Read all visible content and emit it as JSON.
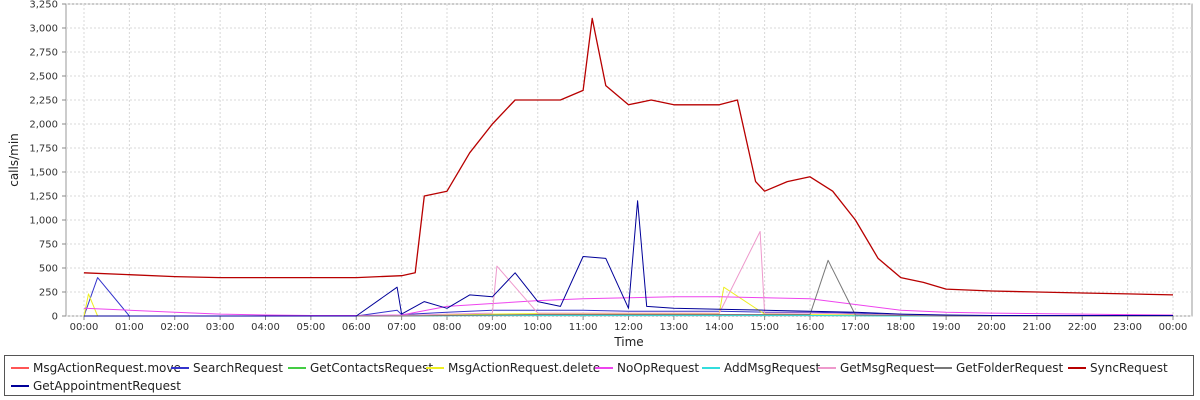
{
  "chart_data": {
    "type": "line",
    "xlabel": "Time",
    "ylabel": "calls/min",
    "ylim": [
      0,
      3250
    ],
    "xlim": [
      0,
      24
    ],
    "y_ticks": [
      0,
      250,
      500,
      750,
      1000,
      1250,
      1500,
      1750,
      2000,
      2250,
      2500,
      2750,
      3000,
      3250
    ],
    "y_tick_labels": [
      "0",
      "250",
      "500",
      "750",
      "1,000",
      "1,250",
      "1,500",
      "1,750",
      "2,000",
      "2,250",
      "2,500",
      "2,750",
      "3,000",
      "3,250"
    ],
    "x_tick_labels": [
      "00:00",
      "01:00",
      "02:00",
      "03:00",
      "04:00",
      "05:00",
      "06:00",
      "07:00",
      "08:00",
      "09:00",
      "10:00",
      "11:00",
      "12:00",
      "13:00",
      "14:00",
      "15:00",
      "16:00",
      "17:00",
      "18:00",
      "19:00",
      "20:00",
      "21:00",
      "22:00",
      "23:00",
      "00:00"
    ],
    "grid": true,
    "legend_position": "bottom",
    "series": [
      {
        "name": "MsgActionRequest.move",
        "color": "#ff5555",
        "x": [
          0,
          1,
          2,
          3,
          4,
          5,
          6,
          7,
          8,
          9,
          10,
          11,
          12,
          13,
          14,
          15,
          16,
          17,
          18,
          19,
          20,
          21,
          22,
          23,
          24
        ],
        "values": [
          0,
          0,
          0,
          0,
          0,
          0,
          0,
          0,
          5,
          10,
          15,
          15,
          15,
          15,
          15,
          10,
          10,
          5,
          3,
          0,
          0,
          0,
          0,
          0,
          0
        ]
      },
      {
        "name": "SearchRequest",
        "color": "#3333cc",
        "x": [
          0,
          0.3,
          1,
          2,
          3,
          4,
          5,
          6,
          6.9,
          7,
          8,
          9,
          10,
          11,
          12,
          13,
          14,
          15,
          16,
          17,
          18,
          19,
          20,
          21,
          22,
          23,
          24
        ],
        "values": [
          0,
          400,
          0,
          0,
          0,
          0,
          0,
          0,
          60,
          15,
          40,
          60,
          60,
          60,
          50,
          50,
          50,
          40,
          40,
          30,
          10,
          5,
          5,
          5,
          5,
          5,
          5
        ]
      },
      {
        "name": "GetContactsRequest",
        "color": "#44cc44",
        "x": [
          0,
          1,
          2,
          3,
          4,
          5,
          6,
          7,
          8,
          9,
          10,
          11,
          12,
          13,
          14,
          15,
          16,
          17,
          18,
          19,
          20,
          21,
          22,
          23,
          24
        ],
        "values": [
          0,
          0,
          0,
          0,
          0,
          0,
          0,
          0,
          5,
          10,
          10,
          10,
          10,
          10,
          10,
          10,
          5,
          5,
          0,
          0,
          0,
          0,
          0,
          0,
          0
        ]
      },
      {
        "name": "MsgActionRequest.delete",
        "color": "#eeee22",
        "x": [
          0,
          0.1,
          0.3,
          1,
          2,
          3,
          4,
          5,
          6,
          7,
          8,
          9,
          10,
          11,
          12,
          13,
          14,
          14.1,
          15,
          16,
          17,
          18,
          19,
          20,
          21,
          22,
          23,
          24
        ],
        "values": [
          0,
          230,
          0,
          0,
          0,
          0,
          0,
          0,
          0,
          5,
          15,
          20,
          25,
          25,
          25,
          25,
          25,
          300,
          20,
          15,
          10,
          5,
          0,
          0,
          0,
          0,
          0,
          0
        ]
      },
      {
        "name": "NoOpRequest",
        "color": "#ee44ee",
        "x": [
          0,
          1,
          2,
          3,
          4,
          5,
          6,
          7,
          8,
          9,
          10,
          11,
          12,
          13,
          14,
          15,
          16,
          17,
          18,
          19,
          20,
          21,
          22,
          23,
          24
        ],
        "values": [
          80,
          60,
          40,
          20,
          10,
          5,
          5,
          10,
          100,
          130,
          160,
          180,
          190,
          200,
          200,
          190,
          180,
          120,
          60,
          40,
          30,
          25,
          20,
          15,
          10
        ]
      },
      {
        "name": "AddMsgRequest",
        "color": "#33dddd",
        "x": [
          0,
          1,
          2,
          3,
          4,
          5,
          6,
          7,
          8,
          9,
          10,
          11,
          12,
          13,
          14,
          15,
          16,
          17,
          18,
          19,
          20,
          21,
          22,
          23,
          24
        ],
        "values": [
          0,
          0,
          0,
          0,
          0,
          0,
          0,
          0,
          2,
          5,
          5,
          5,
          5,
          5,
          5,
          5,
          5,
          2,
          0,
          0,
          0,
          0,
          0,
          0,
          0
        ]
      },
      {
        "name": "GetMsgRequest",
        "color": "#ee99cc",
        "x": [
          0,
          1,
          2,
          3,
          4,
          5,
          6,
          7,
          8,
          9,
          9.1,
          10,
          11,
          12,
          13,
          14,
          14.9,
          15,
          16,
          17,
          18,
          19,
          20,
          21,
          22,
          23,
          24
        ],
        "values": [
          0,
          0,
          0,
          0,
          0,
          0,
          0,
          5,
          20,
          30,
          520,
          30,
          30,
          30,
          30,
          30,
          880,
          30,
          30,
          20,
          10,
          5,
          0,
          0,
          0,
          0,
          0
        ]
      },
      {
        "name": "GetFolderRequest",
        "color": "#777777",
        "x": [
          0,
          1,
          2,
          3,
          4,
          5,
          6,
          7,
          8,
          9,
          10,
          11,
          12,
          13,
          14,
          15,
          16,
          16.4,
          17,
          18,
          19,
          20,
          21,
          22,
          23,
          24
        ],
        "values": [
          0,
          0,
          0,
          0,
          0,
          0,
          0,
          0,
          5,
          10,
          15,
          15,
          15,
          15,
          15,
          15,
          15,
          580,
          10,
          5,
          0,
          0,
          0,
          0,
          0,
          0
        ]
      },
      {
        "name": "SyncRequest",
        "color": "#b80000",
        "x": [
          0,
          1,
          2,
          3,
          4,
          5,
          6,
          7,
          7.3,
          7.5,
          8,
          8.5,
          9,
          9.5,
          10,
          10.5,
          11,
          11.2,
          11.5,
          12,
          12.5,
          13,
          13.5,
          14,
          14.4,
          14.8,
          15,
          15.5,
          16,
          16.5,
          17,
          17.5,
          18,
          18.5,
          19,
          20,
          21,
          22,
          23,
          24
        ],
        "values": [
          450,
          430,
          410,
          400,
          400,
          400,
          400,
          420,
          450,
          1250,
          1300,
          1700,
          2000,
          2250,
          2250,
          2250,
          2350,
          3100,
          2400,
          2200,
          2250,
          2200,
          2200,
          2200,
          2250,
          1400,
          1300,
          1400,
          1450,
          1300,
          1000,
          600,
          400,
          350,
          280,
          260,
          250,
          240,
          230,
          220
        ]
      },
      {
        "name": "GetAppointmentRequest",
        "color": "#000099",
        "x": [
          0,
          1,
          2,
          3,
          4,
          5,
          6,
          6.9,
          7,
          7.5,
          8,
          8.5,
          9,
          9.5,
          10,
          10.5,
          11,
          11.5,
          12,
          12.2,
          12.4,
          13,
          14,
          15,
          16,
          17,
          18,
          19,
          20,
          21,
          22,
          23,
          24
        ],
        "values": [
          0,
          0,
          0,
          0,
          0,
          0,
          0,
          300,
          20,
          150,
          80,
          220,
          200,
          450,
          150,
          100,
          620,
          600,
          80,
          1200,
          100,
          80,
          70,
          60,
          50,
          40,
          20,
          10,
          5,
          5,
          5,
          5,
          5
        ]
      }
    ]
  }
}
